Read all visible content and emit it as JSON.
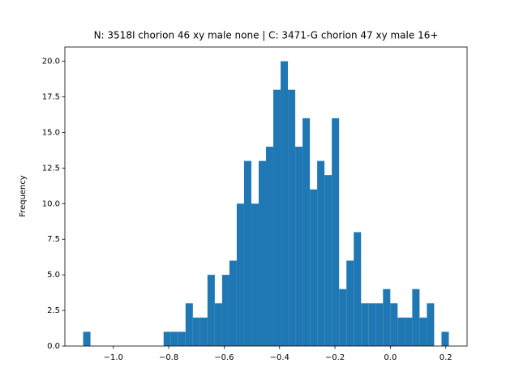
{
  "chart_data": {
    "type": "histogram",
    "title": "N: 3518I chorion 46 xy male none | C: 3471-G chorion 47 xy male 16+",
    "y_label": "Frequency",
    "color": "#1f77b4",
    "bins": [
      -1.109,
      -1.0826,
      -1.0562,
      -1.0298,
      -1.0034,
      -0.977,
      -0.9506,
      -0.9242,
      -0.8978,
      -0.8714,
      -0.845,
      -0.8186,
      -0.7922,
      -0.7658,
      -0.7394,
      -0.713,
      -0.6866,
      -0.6602,
      -0.6338,
      -0.6074,
      -0.581,
      -0.5546,
      -0.5282,
      -0.5018,
      -0.4754,
      -0.449,
      -0.4226,
      -0.3962,
      -0.3698,
      -0.3434,
      -0.317,
      -0.2906,
      -0.2642,
      -0.2378,
      -0.2114,
      -0.185,
      -0.1586,
      -0.1322,
      -0.1058,
      -0.0794,
      -0.053,
      -0.0266,
      -0.0002,
      0.0262,
      0.0526,
      0.079,
      0.1054,
      0.1318,
      0.1582,
      0.1846,
      0.211
    ],
    "counts": [
      1,
      0,
      0,
      0,
      0,
      0,
      0,
      0,
      0,
      0,
      0,
      1,
      1,
      1,
      3,
      2,
      2,
      5,
      3,
      5,
      6,
      10,
      13,
      10,
      13,
      14,
      18,
      20,
      18,
      14,
      16,
      11,
      13,
      12,
      16,
      4,
      6,
      8,
      3,
      3,
      3,
      4,
      3,
      2,
      2,
      4,
      2,
      3,
      0,
      1
    ],
    "xlim": [
      -1.175,
      0.277
    ],
    "xticks": [
      {
        "value": -1.0,
        "label": "−1.0"
      },
      {
        "value": -0.8,
        "label": "−0.8"
      },
      {
        "value": -0.6,
        "label": "−0.6"
      },
      {
        "value": -0.4,
        "label": "−0.4"
      },
      {
        "value": -0.2,
        "label": "−0.2"
      },
      {
        "value": 0.0,
        "label": "0.0"
      },
      {
        "value": 0.2,
        "label": "0.2"
      }
    ],
    "ylim": [
      0,
      21
    ],
    "yticks": [
      {
        "value": 0,
        "label": "0.0"
      },
      {
        "value": 2.5,
        "label": "2.5"
      },
      {
        "value": 5,
        "label": "5.0"
      },
      {
        "value": 7.5,
        "label": "7.5"
      },
      {
        "value": 10,
        "label": "10.0"
      },
      {
        "value": 12.5,
        "label": "12.5"
      },
      {
        "value": 15,
        "label": "15.0"
      },
      {
        "value": 17.5,
        "label": "17.5"
      },
      {
        "value": 20,
        "label": "20.0"
      }
    ]
  }
}
